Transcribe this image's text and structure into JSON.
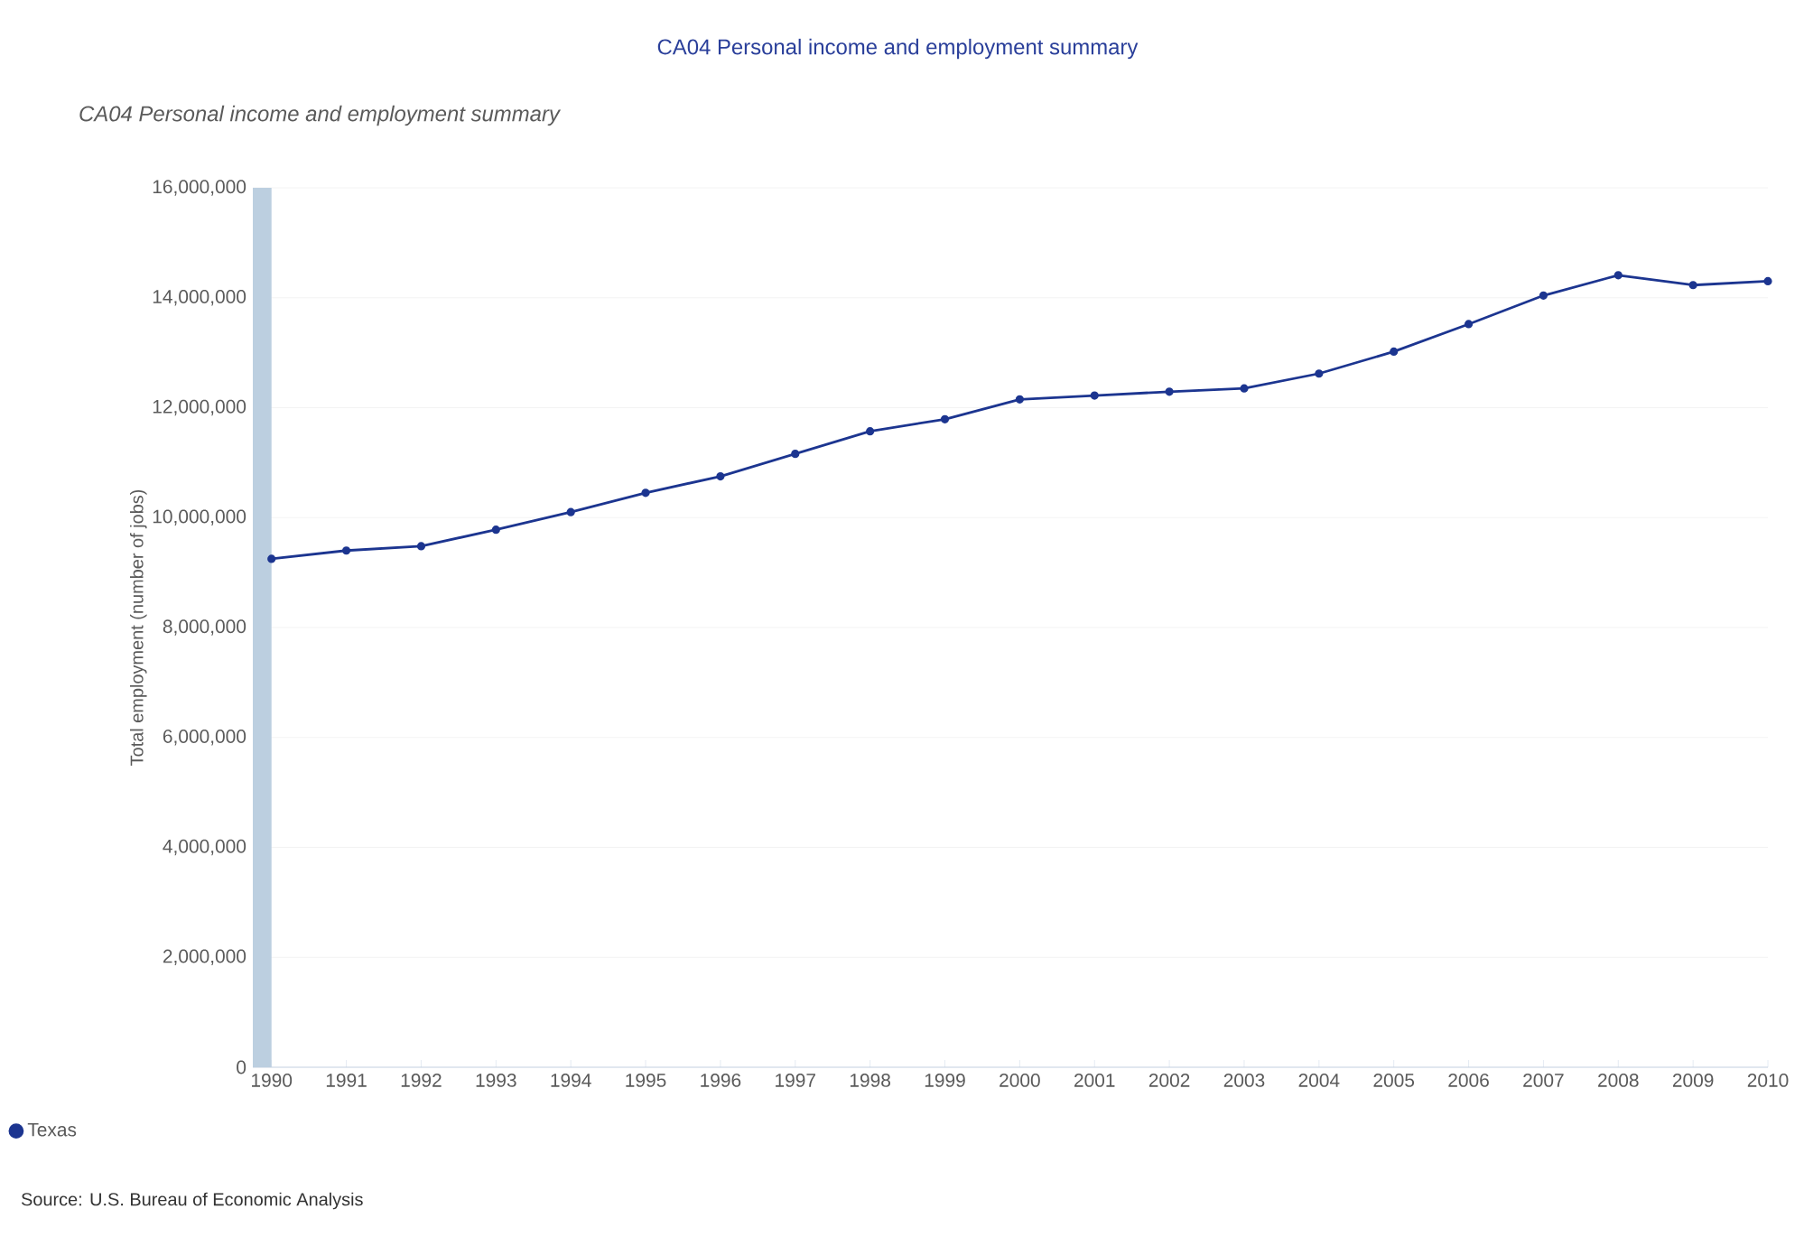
{
  "chart_data": {
    "type": "line",
    "title": "CA04 Personal income and employment summary",
    "subtitle": "CA04 Personal income and employment summary",
    "ylabel": "Total employment (number of jobs)",
    "annotations": [
      "Source: U.S. Bureau of Economic Analysis"
    ],
    "x": [
      1990,
      1991,
      1992,
      1993,
      1994,
      1995,
      1996,
      1997,
      1998,
      1999,
      2000,
      2001,
      2002,
      2003,
      2004,
      2005,
      2006,
      2007,
      2008,
      2009,
      2010
    ],
    "series": [
      {
        "name": "Texas",
        "color": "#1c3590",
        "values": [
          9250000,
          9400000,
          9480000,
          9780000,
          10100000,
          10450000,
          10750000,
          11160000,
          11570000,
          11790000,
          12150000,
          12220000,
          12290000,
          12350000,
          12620000,
          13020000,
          13520000,
          14040000,
          14410000,
          14230000,
          14300000
        ]
      }
    ],
    "xlim": [
      1989.75,
      2010
    ],
    "ylim": [
      0,
      16000000
    ],
    "xticks": [
      1990,
      1991,
      1992,
      1993,
      1994,
      1995,
      1996,
      1997,
      1998,
      1999,
      2000,
      2001,
      2002,
      2003,
      2004,
      2005,
      2006,
      2007,
      2008,
      2009,
      2010
    ],
    "yticks": [
      {
        "value": 0,
        "label": "0"
      },
      {
        "value": 2000000,
        "label": "2,000,000"
      },
      {
        "value": 4000000,
        "label": "4,000,000"
      },
      {
        "value": 6000000,
        "label": "6,000,000"
      },
      {
        "value": 8000000,
        "label": "8,000,000"
      },
      {
        "value": 10000000,
        "label": "10,000,000"
      },
      {
        "value": 12000000,
        "label": "12,000,000"
      },
      {
        "value": 14000000,
        "label": "14,000,000"
      },
      {
        "value": 16000000,
        "label": "16,000,000"
      }
    ],
    "bands": [
      {
        "axis": "x",
        "from": 1989.75,
        "to": 1990,
        "color": "#bccfe0"
      }
    ],
    "grid": "y",
    "legend": "bottom left",
    "marker": "circle",
    "line_style": "solid"
  }
}
